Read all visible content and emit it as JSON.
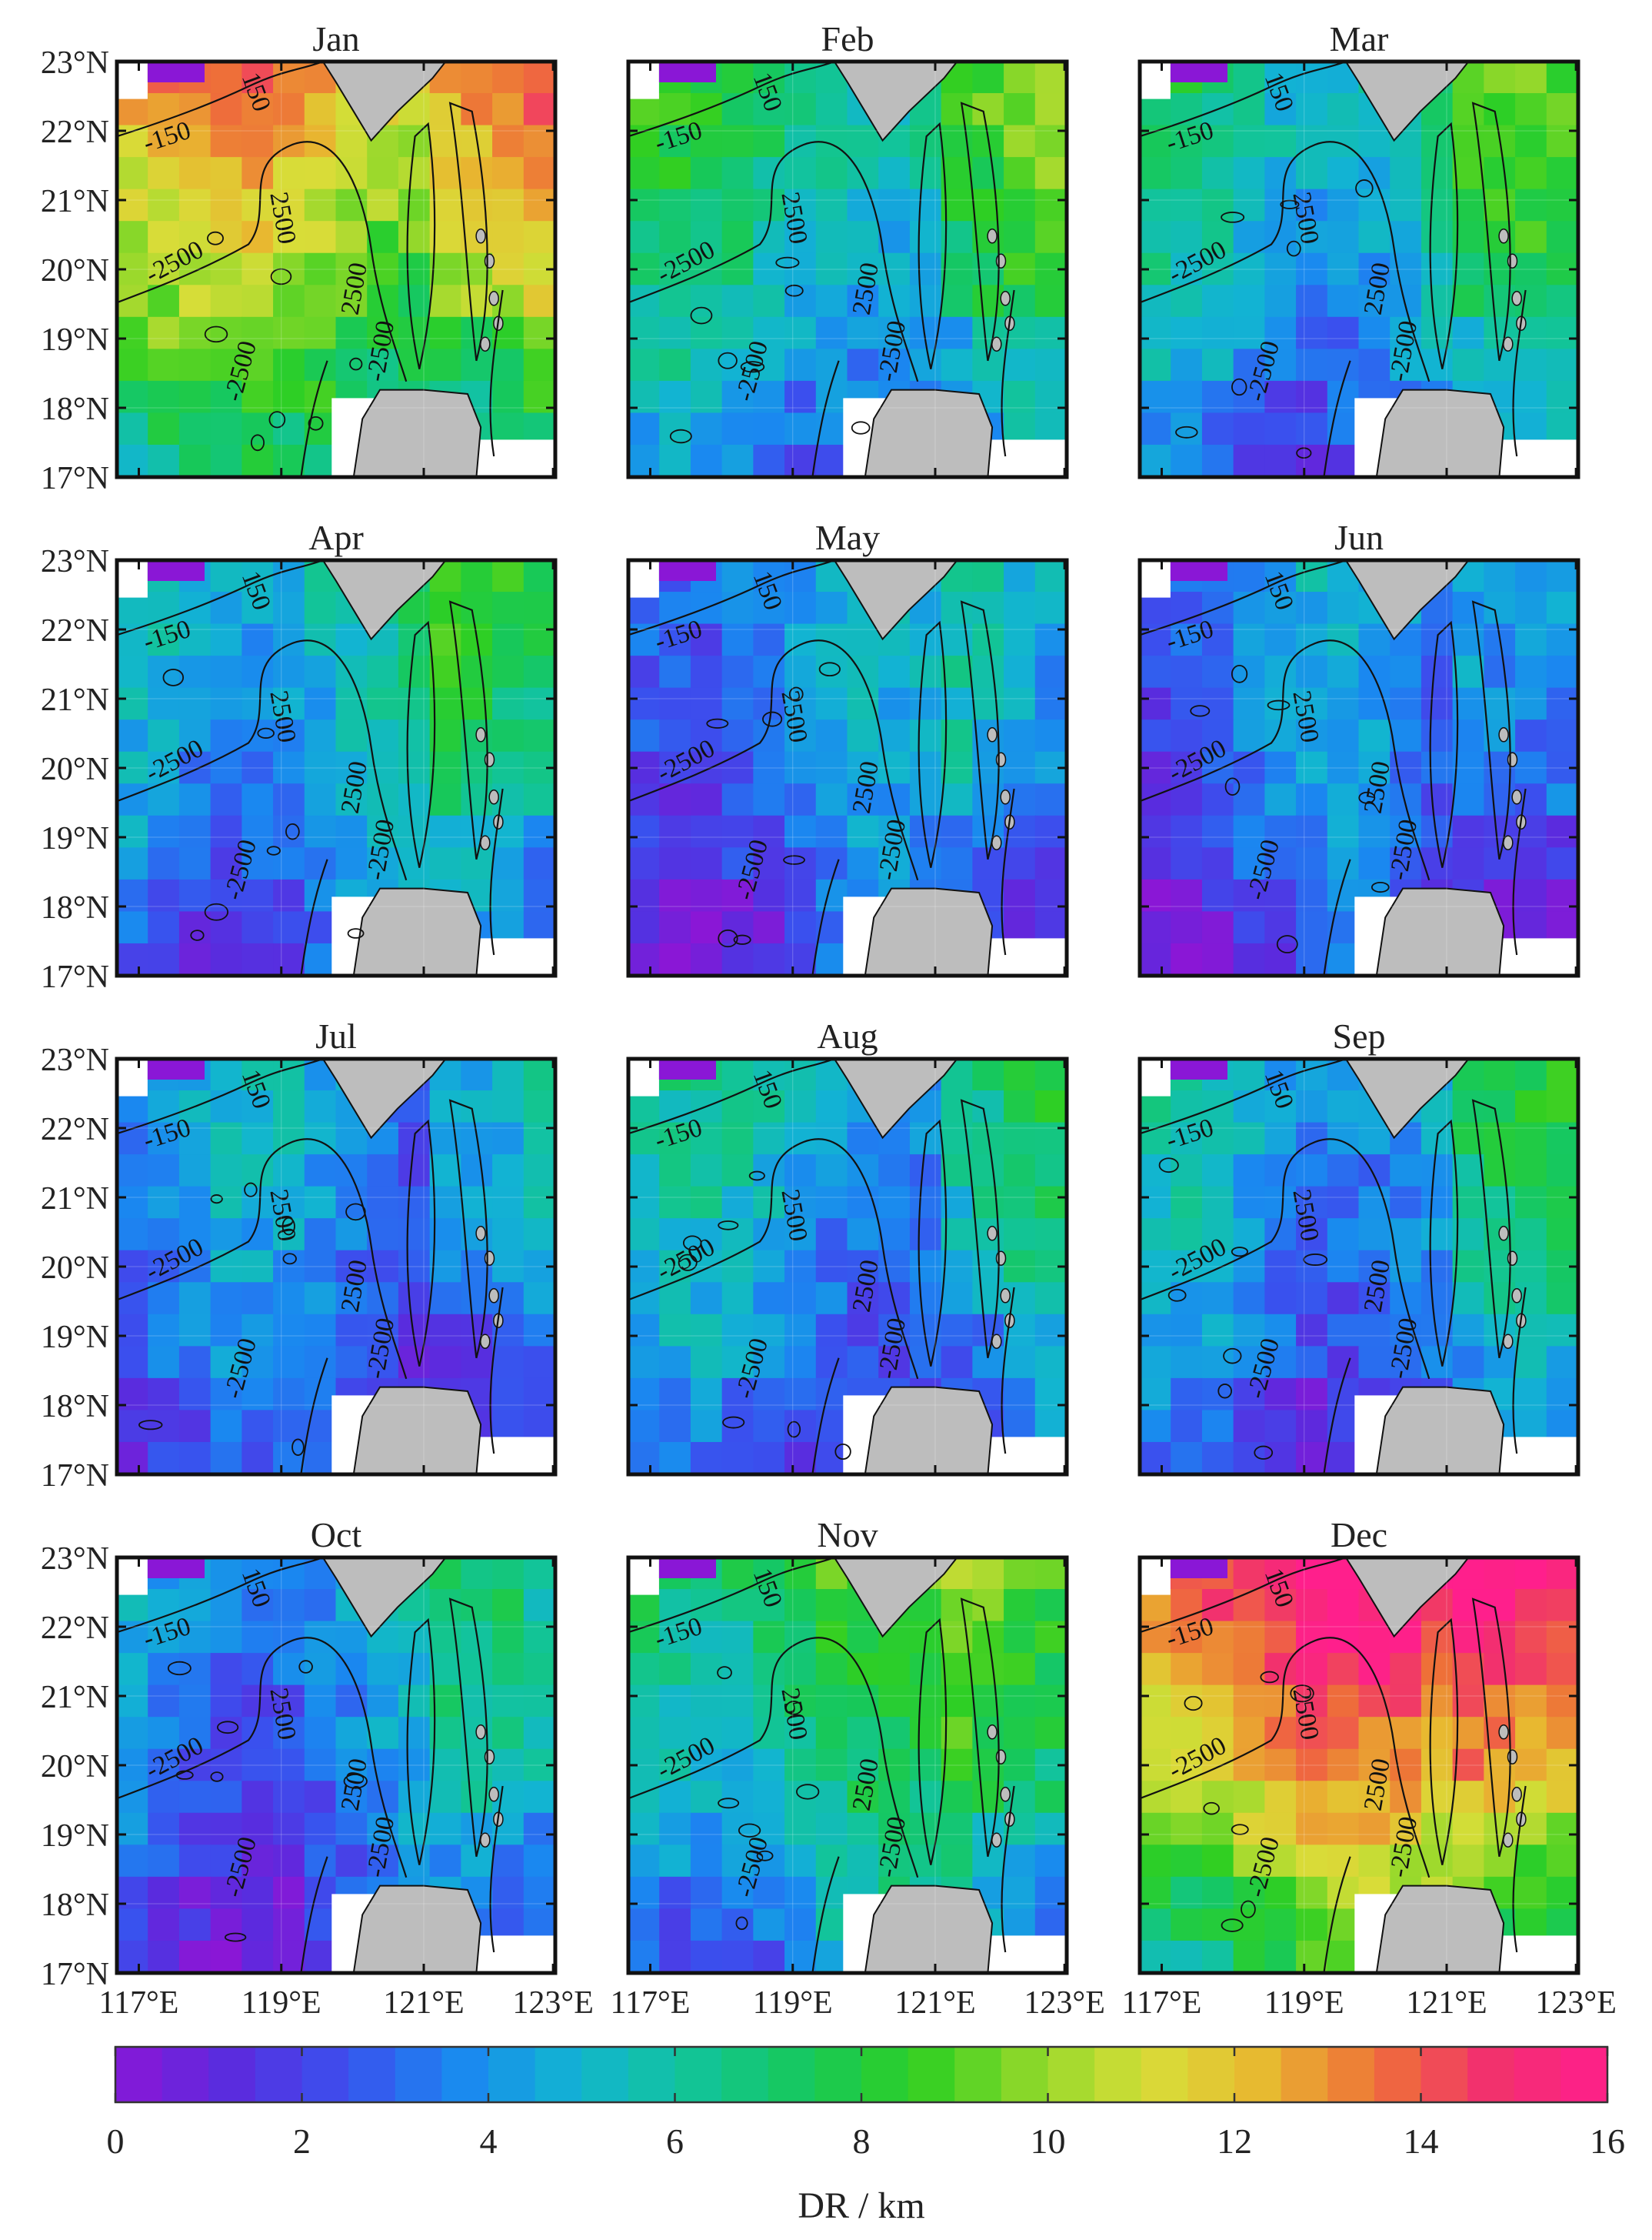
{
  "figure": {
    "panels": [
      "Jan",
      "Feb",
      "Mar",
      "Apr",
      "May",
      "Jun",
      "Jul",
      "Aug",
      "Sep",
      "Oct",
      "Nov",
      "Dec"
    ],
    "y_ticks": [
      "23°N",
      "22°N",
      "21°N",
      "20°N",
      "19°N",
      "18°N",
      "17°N"
    ],
    "x_ticks": [
      "117°E",
      "119°E",
      "121°E",
      "123°E"
    ],
    "contour_labels": [
      "-150",
      "150",
      "-2500",
      "2500",
      "-2500",
      "2500",
      "-2500"
    ],
    "colorbar": {
      "ticks": [
        "0",
        "2",
        "4",
        "6",
        "8",
        "10",
        "12",
        "14",
        "16"
      ],
      "label": "DR  /  km",
      "min": 0,
      "max": 16,
      "levels": 32
    },
    "colors": {
      "land": "#bdbdbd",
      "contour": "#111111",
      "colormap": [
        "#8a17d6",
        "#5a2bde",
        "#3a50ee",
        "#1a88f0",
        "#12b4d2",
        "#12c49a",
        "#16c85c",
        "#2fcf22",
        "#8fd82a",
        "#d8dd38",
        "#e8b830",
        "#ee7038",
        "#f2306e",
        "#ff1f8c"
      ]
    },
    "intensity": {
      "Jan": 0.72,
      "Feb": 0.42,
      "Mar": 0.38,
      "Apr": 0.34,
      "May": 0.24,
      "Jun": 0.22,
      "Jul": 0.24,
      "Aug": 0.3,
      "Sep": 0.3,
      "Oct": 0.26,
      "Nov": 0.46,
      "Dec": 0.88
    }
  }
}
